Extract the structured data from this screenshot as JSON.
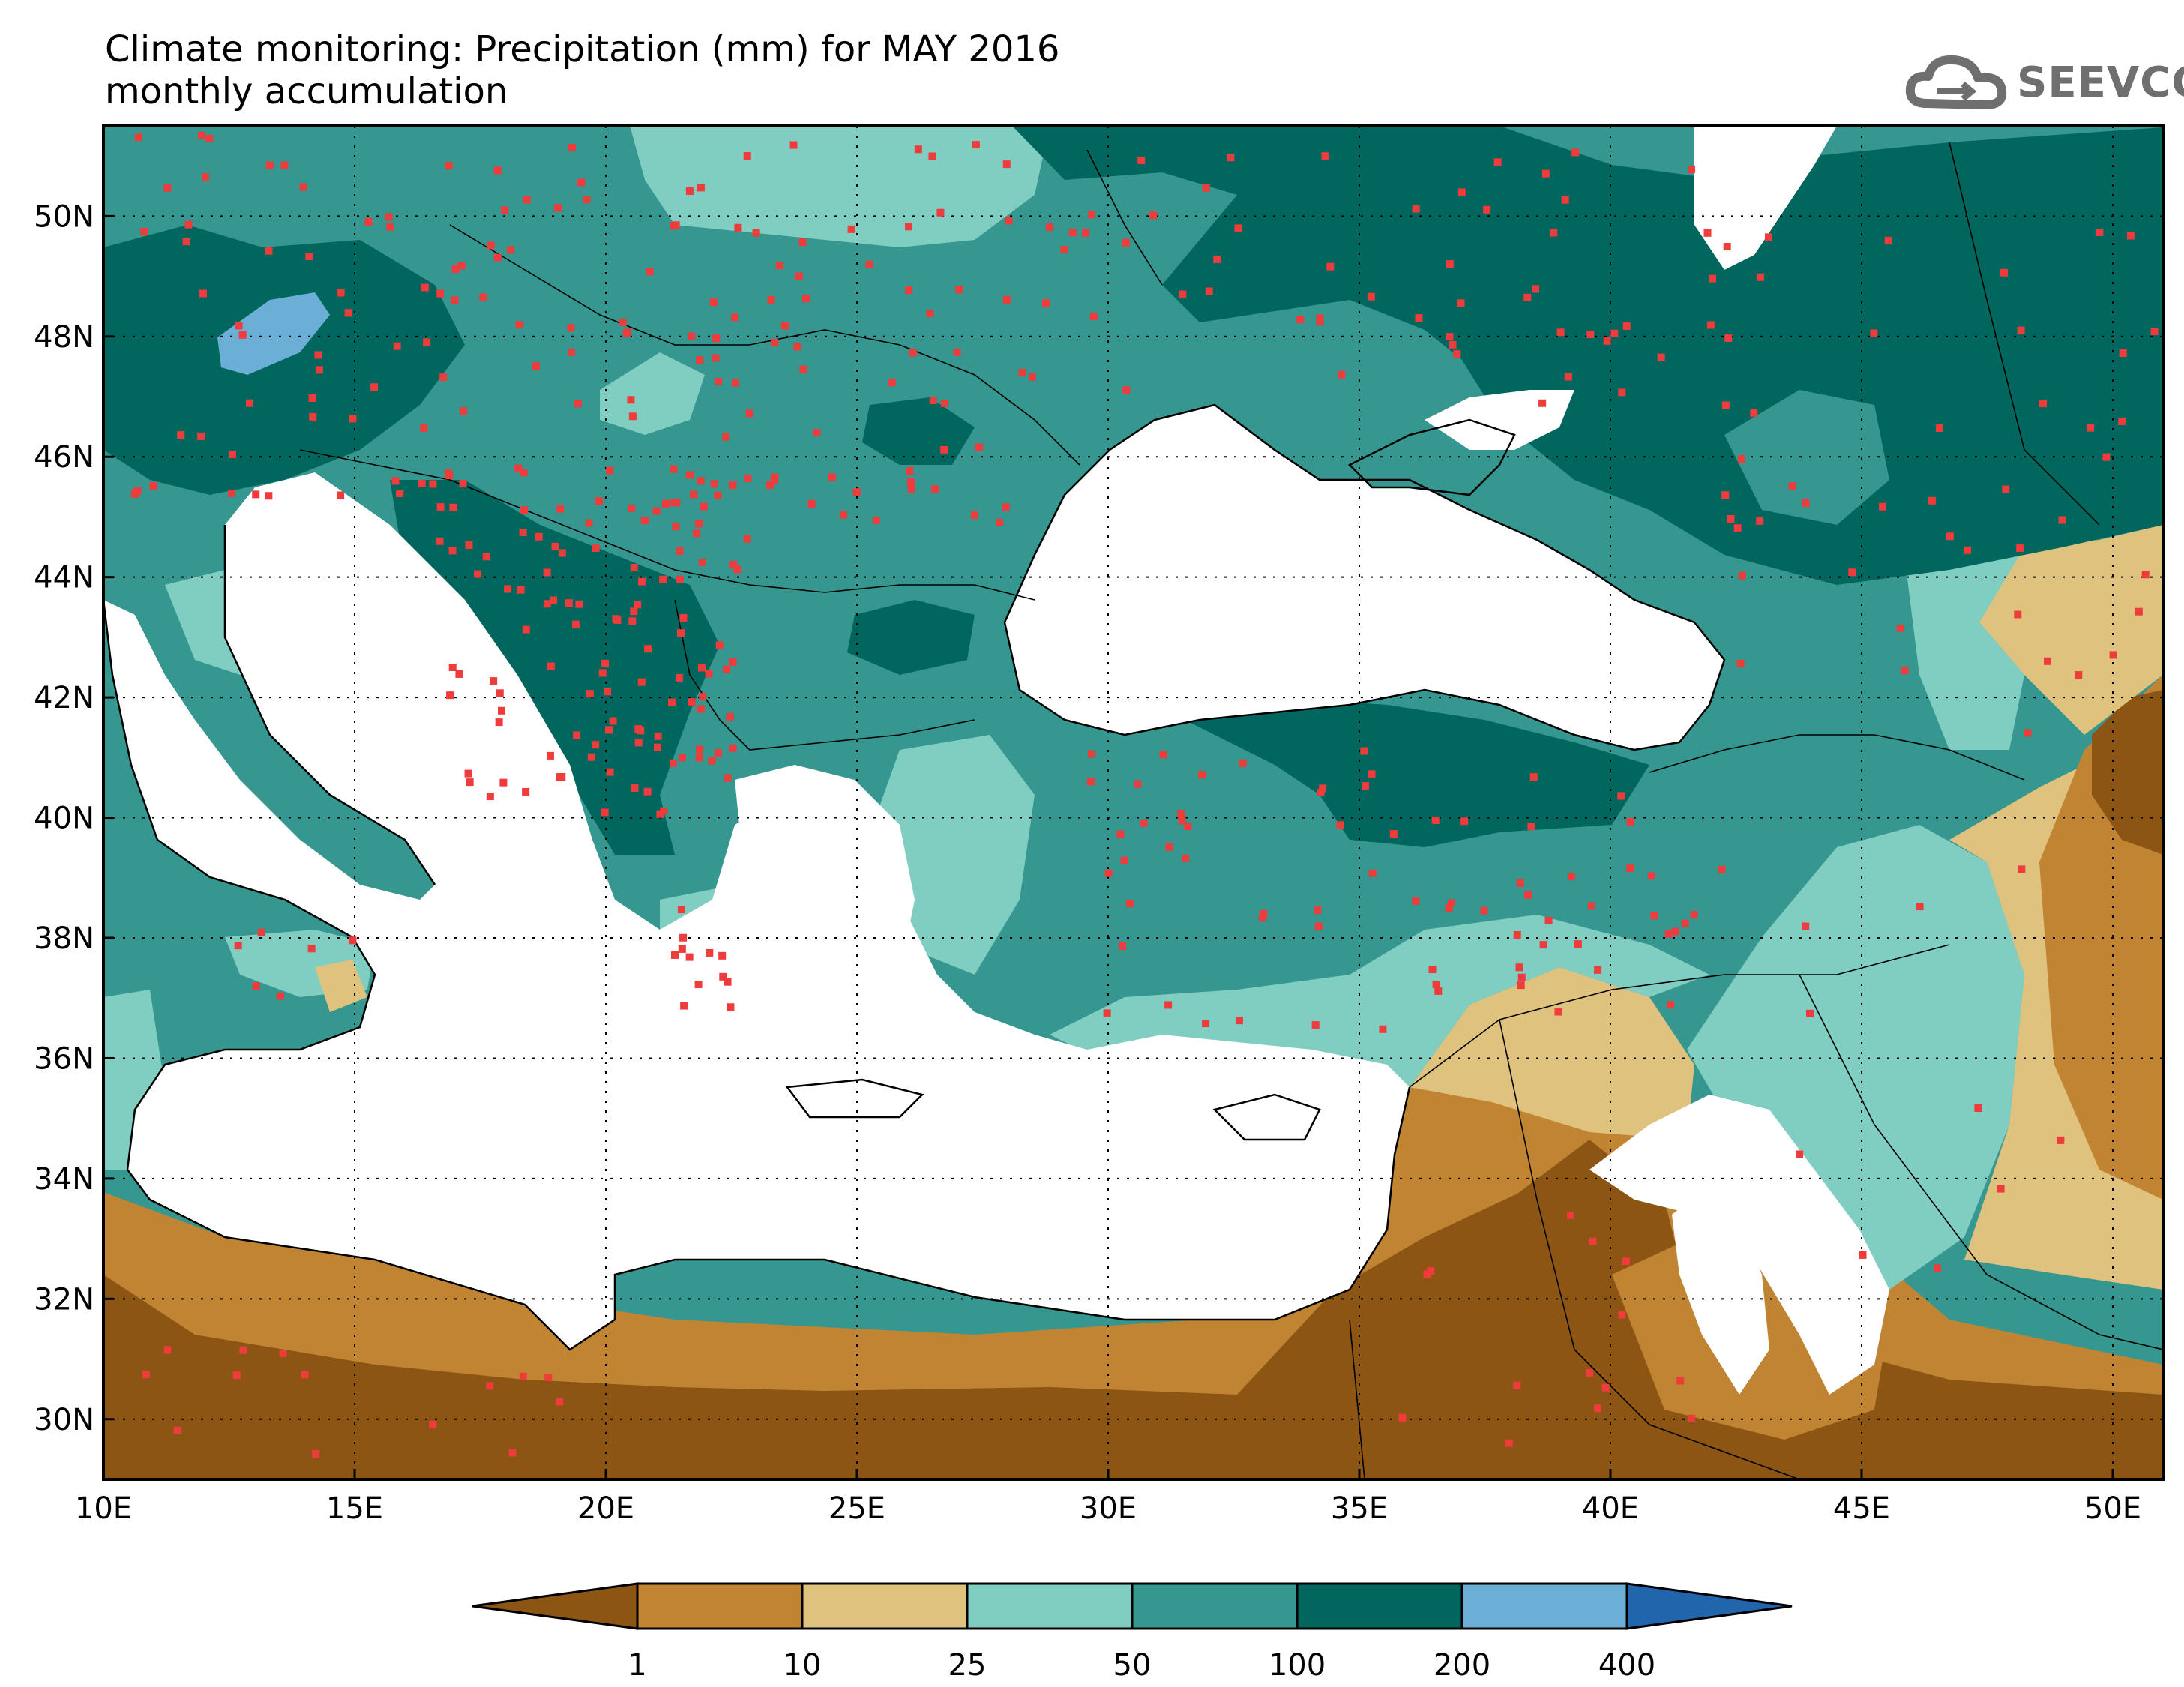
{
  "title": "Climate monitoring: Precipitation (mm) for MAY 2016",
  "subtitle": "monthly accumulation",
  "logo": {
    "text": "SEEVCCC",
    "icon": "cloud-icon"
  },
  "map": {
    "extent": {
      "lon_min": 10,
      "lon_max": 51,
      "lat_min": 29,
      "lat_max": 51.5
    },
    "lon_ticks": [
      {
        "value": 10,
        "label": "10E"
      },
      {
        "value": 15,
        "label": "15E"
      },
      {
        "value": 20,
        "label": "20E"
      },
      {
        "value": 25,
        "label": "25E"
      },
      {
        "value": 30,
        "label": "30E"
      },
      {
        "value": 35,
        "label": "35E"
      },
      {
        "value": 40,
        "label": "40E"
      },
      {
        "value": 45,
        "label": "45E"
      },
      {
        "value": 50,
        "label": "50E"
      }
    ],
    "lat_ticks": [
      {
        "value": 30,
        "label": "30N"
      },
      {
        "value": 32,
        "label": "32N"
      },
      {
        "value": 34,
        "label": "34N"
      },
      {
        "value": 36,
        "label": "36N"
      },
      {
        "value": 38,
        "label": "38N"
      },
      {
        "value": 40,
        "label": "40N"
      },
      {
        "value": 42,
        "label": "42N"
      },
      {
        "value": 44,
        "label": "44N"
      },
      {
        "value": 46,
        "label": "46N"
      },
      {
        "value": 48,
        "label": "48N"
      },
      {
        "value": 50,
        "label": "50N"
      }
    ]
  },
  "colorbar": {
    "colors": [
      "#8c5513",
      "#c08433",
      "#dfc27e",
      "#80cdc1",
      "#35978f",
      "#01665e",
      "#6baed6",
      "#2166ac"
    ],
    "labels": [
      "1",
      "10",
      "25",
      "50",
      "100",
      "200",
      "400"
    ],
    "station_color": "#ee3b3b",
    "sea_color": "#ffffff"
  }
}
